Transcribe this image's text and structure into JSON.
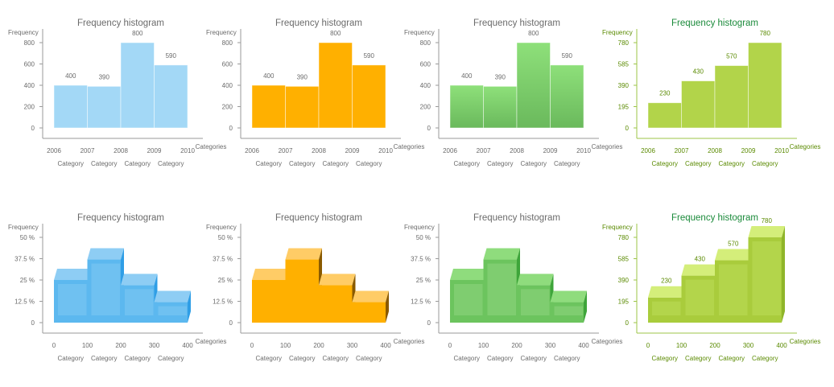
{
  "chart_data": [
    {
      "type": "bar",
      "style": "flat",
      "theme": "blue",
      "title": "Frequency histogram",
      "ylabel": "Frequency",
      "xlabel": "Categories",
      "x_ticks": [
        "2006",
        "2007",
        "2008",
        "2009",
        "2010"
      ],
      "y_ticks": [
        "0",
        "200",
        "400",
        "600",
        "800"
      ],
      "ylim": [
        0,
        800
      ],
      "categories": [
        "Category",
        "Category",
        "Category",
        "Category"
      ],
      "values": [
        400,
        390,
        800,
        590
      ],
      "data_labels": [
        "400",
        "390",
        "800",
        "590"
      ]
    },
    {
      "type": "bar",
      "style": "flat",
      "theme": "orange",
      "title": "Frequency histogram",
      "ylabel": "Frequency",
      "xlabel": "Categories",
      "x_ticks": [
        "2006",
        "2007",
        "2008",
        "2009",
        "2010"
      ],
      "y_ticks": [
        "0",
        "200",
        "400",
        "600",
        "800"
      ],
      "ylim": [
        0,
        800
      ],
      "categories": [
        "Category",
        "Category",
        "Category",
        "Category"
      ],
      "values": [
        400,
        390,
        800,
        590
      ],
      "data_labels": [
        "400",
        "390",
        "800",
        "590"
      ]
    },
    {
      "type": "bar",
      "style": "gradient",
      "theme": "green",
      "title": "Frequency histogram",
      "ylabel": "Frequency",
      "xlabel": "Categories",
      "x_ticks": [
        "2006",
        "2007",
        "2008",
        "2009",
        "2010"
      ],
      "y_ticks": [
        "0",
        "200",
        "400",
        "600",
        "800"
      ],
      "ylim": [
        0,
        800
      ],
      "categories": [
        "Category",
        "Category",
        "Category",
        "Category"
      ],
      "values": [
        400,
        390,
        800,
        590
      ],
      "data_labels": [
        "400",
        "390",
        "800",
        "590"
      ]
    },
    {
      "type": "bar",
      "style": "flat",
      "theme": "lime",
      "title": "Frequency histogram",
      "ylabel": "Frequency",
      "xlabel": "Categories",
      "x_ticks": [
        "2006",
        "2007",
        "2008",
        "2009",
        "2010"
      ],
      "y_ticks": [
        "0",
        "195",
        "390",
        "585",
        "780"
      ],
      "ylim": [
        0,
        780
      ],
      "categories": [
        "Category",
        "Category",
        "Category",
        "Category"
      ],
      "values": [
        230,
        430,
        570,
        780
      ],
      "data_labels": [
        "230",
        "430",
        "570",
        "780"
      ]
    },
    {
      "type": "bar",
      "style": "3d",
      "theme": "blue",
      "title": "Frequency histogram",
      "ylabel": "Frequency",
      "xlabel": "Categories",
      "x_ticks": [
        "0",
        "100",
        "200",
        "300",
        "400"
      ],
      "y_ticks": [
        "0",
        "12.5 %",
        "25 %",
        "37.5 %",
        "50 %"
      ],
      "ylim": [
        0,
        50
      ],
      "categories": [
        "Category",
        "Category",
        "Category",
        "Category"
      ],
      "values": [
        25,
        37,
        22,
        12
      ],
      "data_labels": []
    },
    {
      "type": "bar",
      "style": "3d",
      "theme": "orange",
      "title": "Frequency histogram",
      "ylabel": "Frequency",
      "xlabel": "Categories",
      "x_ticks": [
        "0",
        "100",
        "200",
        "300",
        "400"
      ],
      "y_ticks": [
        "0",
        "12.5 %",
        "25 %",
        "37.5 %",
        "50 %"
      ],
      "ylim": [
        0,
        50
      ],
      "categories": [
        "Category",
        "Category",
        "Category",
        "Category"
      ],
      "values": [
        25,
        37,
        22,
        12
      ],
      "data_labels": []
    },
    {
      "type": "bar",
      "style": "3d",
      "theme": "green",
      "title": "Frequency histogram",
      "ylabel": "Frequency",
      "xlabel": "Categories",
      "x_ticks": [
        "0",
        "100",
        "200",
        "300",
        "400"
      ],
      "y_ticks": [
        "0",
        "12.5 %",
        "25 %",
        "37.5 %",
        "50 %"
      ],
      "ylim": [
        0,
        50
      ],
      "categories": [
        "Category",
        "Category",
        "Category",
        "Category"
      ],
      "values": [
        25,
        37,
        22,
        12
      ],
      "data_labels": []
    },
    {
      "type": "bar",
      "style": "3d",
      "theme": "lime",
      "title": "Frequency histogram",
      "ylabel": "Frequency",
      "xlabel": "Categories",
      "x_ticks": [
        "0",
        "100",
        "200",
        "300",
        "400"
      ],
      "y_ticks": [
        "0",
        "195",
        "390",
        "585",
        "780"
      ],
      "ylim": [
        0,
        780
      ],
      "categories": [
        "Category",
        "Category",
        "Category",
        "Category"
      ],
      "values": [
        230,
        430,
        570,
        780
      ],
      "data_labels": [
        "230",
        "430",
        "570",
        "780"
      ]
    }
  ],
  "themes": {
    "blue": {
      "face": "#a3d8f6",
      "faceBottom": "#a3d8f6",
      "top": "#8ecdf4",
      "side": "#2f9ee6",
      "front3d": "#5cb8ef",
      "frontLight": "#7fc9f3",
      "title": "#6b6b6b",
      "text": "#6b6b6b",
      "axis": "#9a9a9a"
    },
    "orange": {
      "face": "#ffb000",
      "faceBottom": "#ffb000",
      "top": "#ffcc66",
      "side": "#8a5a00",
      "front3d": "#ffb000",
      "frontLight": "#ffb000",
      "title": "#6b6b6b",
      "text": "#6b6b6b",
      "axis": "#9a9a9a"
    },
    "green": {
      "face": "#8ee07a",
      "faceBottom": "#6ab95c",
      "top": "#8fdc7d",
      "side": "#3ea53a",
      "front3d": "#6cc45e",
      "frontLight": "#8fd57f",
      "title": "#6b6b6b",
      "text": "#6b6b6b",
      "axis": "#9a9a9a"
    },
    "lime": {
      "face": "#b2d44a",
      "faceBottom": "#b2d44a",
      "top": "#d4ee7a",
      "side": "#8fb52a",
      "front3d": "#a9cc3c",
      "frontLight": "#bcdc58",
      "title": "#1a8a3a",
      "text": "#5a8a00",
      "axis": "#9cc447"
    }
  }
}
